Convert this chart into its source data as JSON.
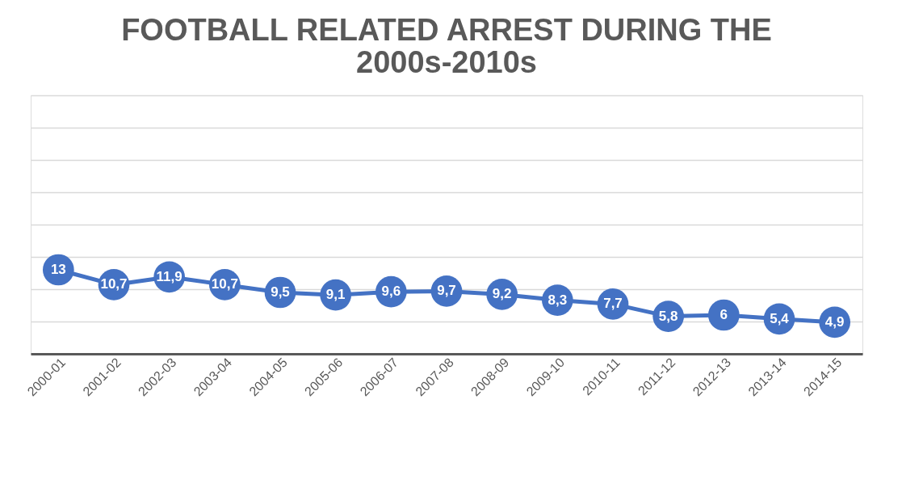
{
  "chart_data": {
    "type": "line",
    "title": "FOOTBALL RELATED ARREST DURING THE 2000s-2010s",
    "categories": [
      "2000-01",
      "2001-02",
      "2002-03",
      "2003-04",
      "2004-05",
      "2005-06",
      "2006-07",
      "2007-08",
      "2008-09",
      "2009-10",
      "2010-11",
      "2011-12",
      "2012-13",
      "2013-14",
      "2014-15"
    ],
    "series": [
      {
        "color": "#4472c4",
        "values": [
          13,
          10.7,
          11.9,
          10.7,
          9.5,
          9.1,
          9.6,
          9.7,
          9.2,
          8.3,
          7.7,
          5.8,
          6,
          5.4,
          4.9
        ],
        "value_labels": [
          "13",
          "10,7",
          "11,9",
          "10,7",
          "9,5",
          "9,1",
          "9,6",
          "9,7",
          "9,2",
          "8,3",
          "7,7",
          "5,8",
          "6",
          "5,4",
          "4,9"
        ]
      }
    ],
    "ylim": [
      0,
      40
    ],
    "yticks": [
      {
        "value": 0,
        "label": null
      },
      {
        "value": 5,
        "label": null
      },
      {
        "value": 10,
        "label": null
      },
      {
        "value": 15,
        "label": null
      },
      {
        "value": 20,
        "label": null
      },
      {
        "value": 25,
        "label": null
      },
      {
        "value": 30,
        "label": null
      },
      {
        "value": 35,
        "label": null
      },
      {
        "value": 40,
        "label": null
      }
    ],
    "tick_labels": "x",
    "grid": "y",
    "marker": "circle",
    "line_style": "solid"
  }
}
